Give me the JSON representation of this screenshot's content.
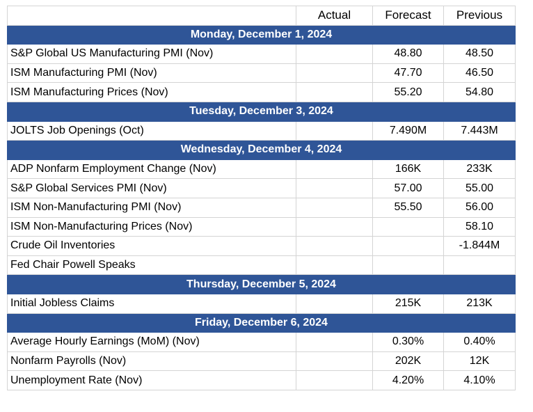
{
  "table": {
    "columns": [
      "Actual",
      "Forecast",
      "Previous"
    ],
    "sections": [
      {
        "day": "Monday, December 1, 2024",
        "rows": [
          {
            "event": "S&P Global US Manufacturing PMI (Nov)",
            "forecast": "48.80",
            "previous": "48.50"
          },
          {
            "event": "ISM Manufacturing PMI (Nov)",
            "forecast": "47.70",
            "previous": "46.50"
          },
          {
            "event": "ISM Manufacturing Prices (Nov)",
            "forecast": "55.20",
            "previous": "54.80"
          }
        ]
      },
      {
        "day": "Tuesday, December 3, 2024",
        "rows": [
          {
            "event": "JOLTS Job Openings (Oct)",
            "forecast": "7.490M",
            "previous": "7.443M"
          }
        ]
      },
      {
        "day": "Wednesday, December 4, 2024",
        "rows": [
          {
            "event": "ADP Nonfarm Employment Change (Nov)",
            "forecast": "166K",
            "previous": "233K"
          },
          {
            "event": "S&P Global Services PMI (Nov)",
            "forecast": "57.00",
            "previous": "55.00"
          },
          {
            "event": "ISM Non-Manufacturing PMI (Nov)",
            "forecast": "55.50",
            "previous": "56.00"
          },
          {
            "event": "ISM Non-Manufacturing Prices (Nov)",
            "previous": "58.10"
          },
          {
            "event": "Crude Oil Inventories",
            "previous": "-1.844M"
          },
          {
            "event": "Fed Chair Powell Speaks"
          }
        ]
      },
      {
        "day": "Thursday, December 5, 2024",
        "rows": [
          {
            "event": "Initial Jobless Claims",
            "forecast": "215K",
            "previous": "213K"
          }
        ]
      },
      {
        "day": "Friday, December 6, 2024",
        "rows": [
          {
            "event": "Average Hourly Earnings (MoM) (Nov)",
            "forecast": "0.30%",
            "previous": "0.40%"
          },
          {
            "event": "Nonfarm Payrolls (Nov)",
            "forecast": "202K",
            "previous": "12K"
          },
          {
            "event": "Unemployment Rate (Nov)",
            "forecast": "4.20%",
            "previous": "4.10%"
          }
        ]
      }
    ]
  }
}
